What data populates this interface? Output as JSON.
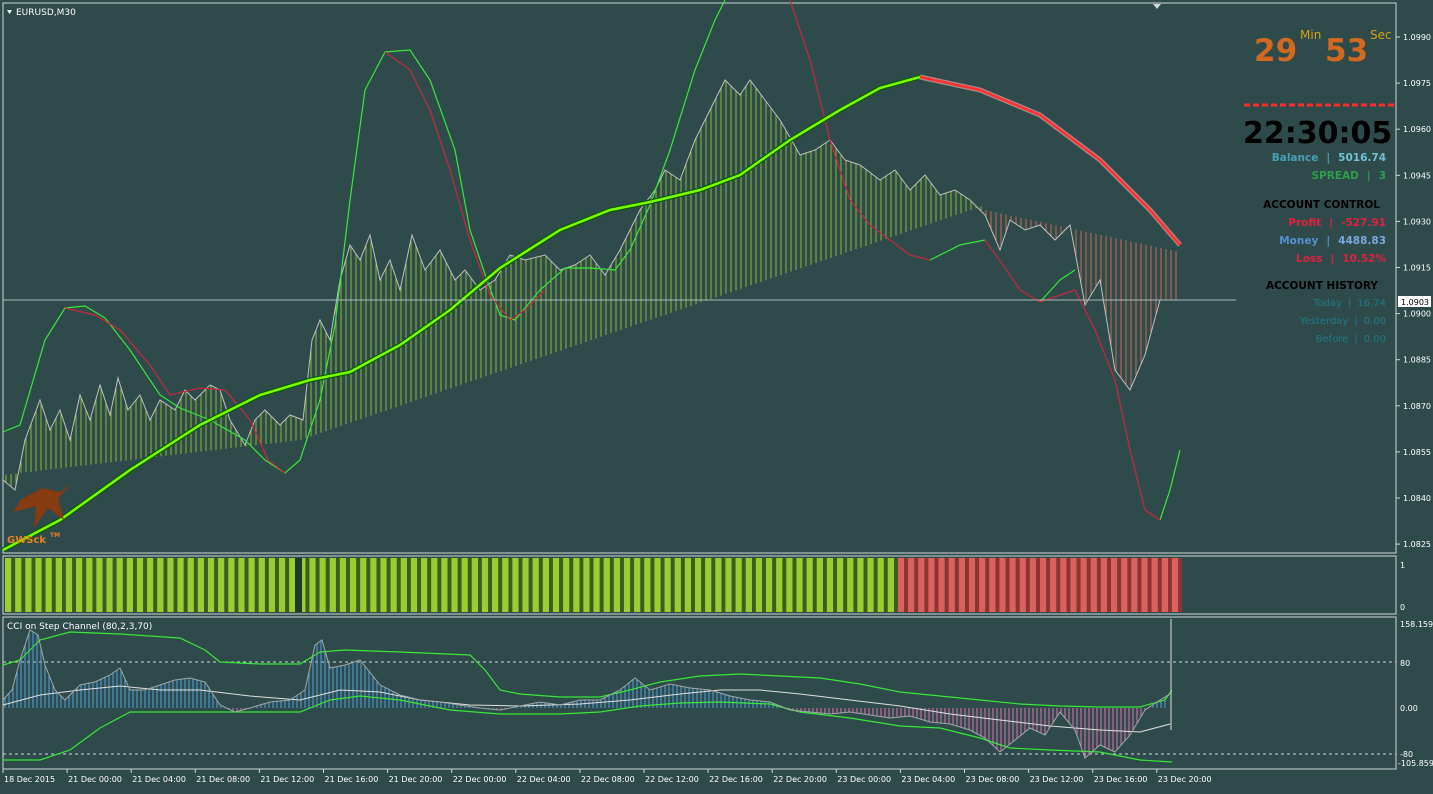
{
  "window": {
    "symbol_title": "EURUSD,M30",
    "menu_icon": "triangle-down-icon"
  },
  "colors": {
    "background": "#2f4a4a",
    "grid": "#cfd8d8",
    "bull_bar": "#9acd32",
    "bear_bar": "#e0735a",
    "trend_up": "#7cfc00",
    "trend_down": "#ff3030",
    "band_green": "#39e639",
    "band_red": "#c8283c",
    "price_line": "#c0c0c0",
    "cci_blue": "#4fa3e0",
    "cci_pink": "#e070b0",
    "timer_orange": "#d2691e"
  },
  "main_chart": {
    "price_axis_labels": [
      "1.0990",
      "1.0975",
      "1.0960",
      "1.0945",
      "1.0930",
      "1.0915",
      "1.0900",
      "1.0885",
      "1.0870",
      "1.0855",
      "1.0840",
      "1.0825"
    ],
    "current_price_tag": "1.0903",
    "logo_text": "GWSck",
    "logo_tm": "TM"
  },
  "timer": {
    "minutes": "29",
    "minutes_label": "Min",
    "seconds": "53",
    "seconds_label": "Sec",
    "clock": "22:30:05"
  },
  "account": {
    "balance_label": "Balance",
    "balance_value": "5016.74",
    "spread_label": "SPREAD",
    "spread_value": "3",
    "control_title": "ACCOUNT  CONTROL",
    "profit_label": "Profit",
    "profit_value": "-527.91",
    "money_label": "Money",
    "money_value": "4488.83",
    "loss_label": "Loss",
    "loss_value": "10.52%",
    "history_title": "ACCOUNT  HISTORY",
    "today_label": "Today",
    "today_value": "16.74",
    "yesterday_label": "Yesterday",
    "yesterday_value": "0.00",
    "before_label": "Before",
    "before_value": "0.00",
    "separator": "|"
  },
  "histogram_panel": {
    "axis_labels": [
      "1",
      "0"
    ],
    "bull_bar_count": 88,
    "bear_bar_count": 28
  },
  "cci_panel": {
    "title": "CCI on Step Channel (80,2,3,70)",
    "axis_labels": [
      "158.159",
      "80",
      "0.00",
      "-80",
      "-105.859"
    ]
  },
  "time_axis": {
    "labels": [
      "18 Dec 2015",
      "21 Dec 00:00",
      "21 Dec 04:00",
      "21 Dec 08:00",
      "21 Dec 12:00",
      "21 Dec 16:00",
      "21 Dec 20:00",
      "22 Dec 00:00",
      "22 Dec 04:00",
      "22 Dec 08:00",
      "22 Dec 12:00",
      "22 Dec 16:00",
      "22 Dec 20:00",
      "23 Dec 00:00",
      "23 Dec 04:00",
      "23 Dec 08:00",
      "23 Dec 12:00",
      "23 Dec 16:00",
      "23 Dec 20:00"
    ]
  }
}
